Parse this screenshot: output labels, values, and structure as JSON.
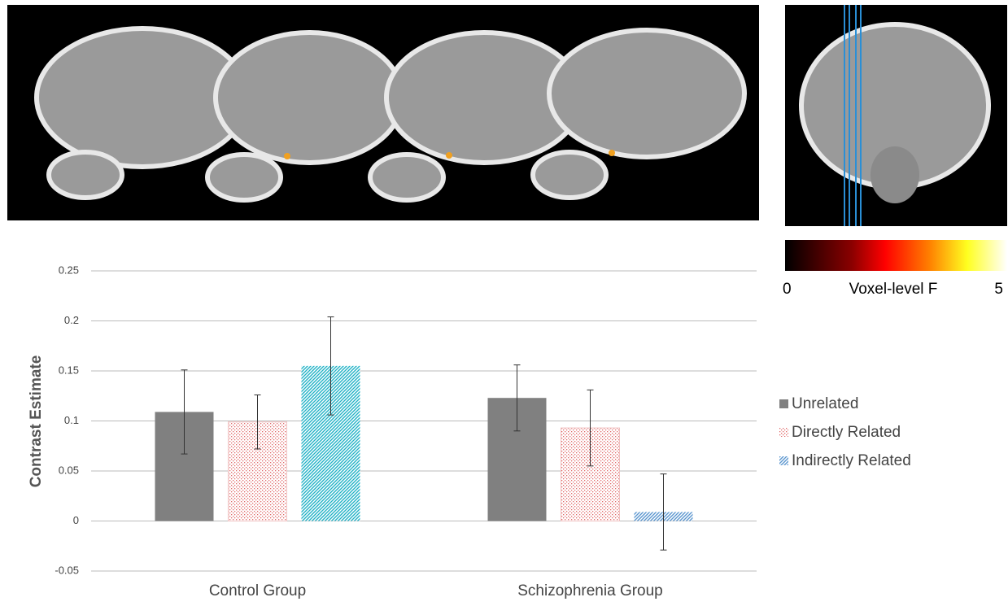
{
  "chart_data": {
    "type": "bar",
    "ylabel": "Contrast Estimate",
    "categories": [
      "Control Group",
      "Schizophrenia Group"
    ],
    "series": [
      {
        "name": "Unrelated",
        "color": "#808080",
        "fill": "solid",
        "values": [
          0.109,
          0.123
        ],
        "errors": [
          0.042,
          0.033
        ]
      },
      {
        "name": "Directly Related",
        "color": "#e06a6a",
        "fill": "dots",
        "values": [
          0.099,
          0.093
        ],
        "errors": [
          0.027,
          0.038
        ]
      },
      {
        "name": "Indirectly Related",
        "color": "#5b96cf",
        "colors": [
          "#22b2c6",
          "#5b96cf"
        ],
        "fill": "hatch",
        "values": [
          0.155,
          0.009
        ],
        "errors": [
          0.049,
          0.038
        ]
      }
    ],
    "ylim": [
      -0.05,
      0.25
    ],
    "yticks": [
      -0.05,
      0,
      0.05,
      0.1,
      0.15,
      0.2,
      0.25
    ],
    "grid": true
  },
  "colorbar": {
    "min": 0,
    "label": "Voxel-level F",
    "max": 5
  }
}
